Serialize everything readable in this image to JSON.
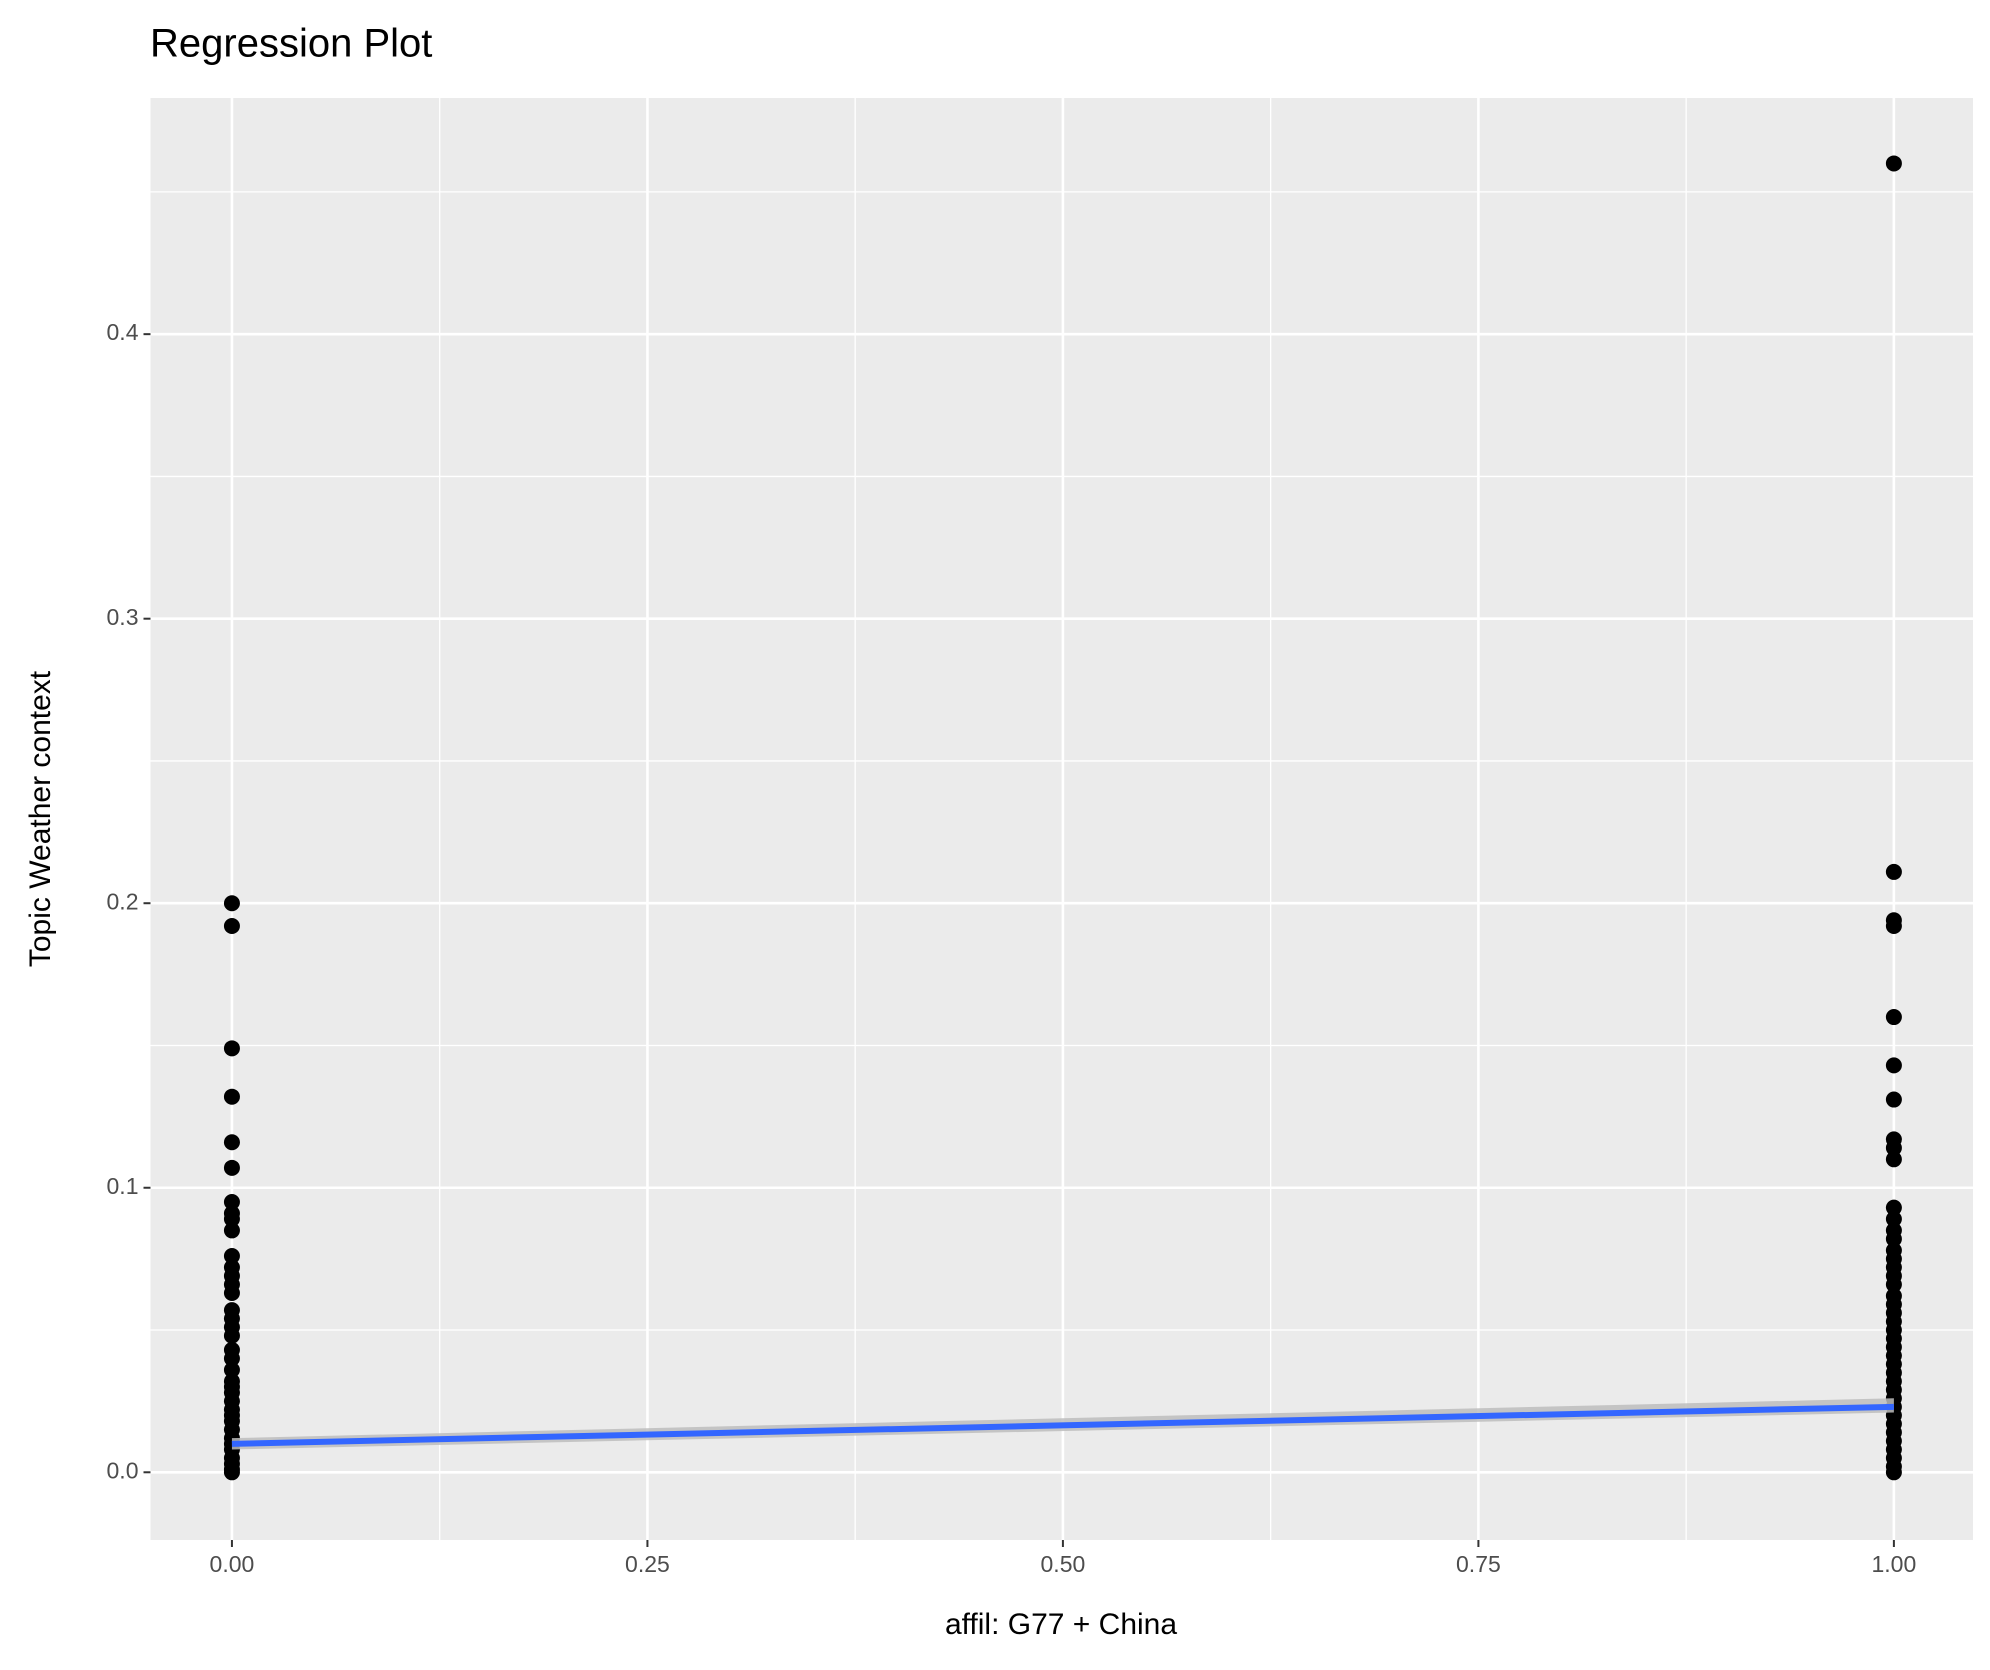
{
  "chart_data": {
    "type": "scatter",
    "title": "Regression Plot",
    "x_label": "affil: G77 + China",
    "y_label": "Topic Weather context",
    "xlim": [
      -0.049,
      1.0476
    ],
    "ylim": [
      -0.0238,
      0.483
    ],
    "xticks": [
      {
        "value": 0,
        "label": "0.00"
      },
      {
        "value": 0.25,
        "label": "0.25"
      },
      {
        "value": 0.5,
        "label": "0.50"
      },
      {
        "value": 0.75,
        "label": "0.75"
      },
      {
        "value": 1,
        "label": "1.00"
      }
    ],
    "yticks": [
      {
        "value": 0,
        "label": "0.0"
      },
      0.1,
      0.2,
      0.3,
      0.4
    ],
    "x_minor_grid": [
      0.125,
      0.375,
      0.625,
      0.875
    ],
    "y_minor_grid": [
      0.05,
      0.15,
      0.25,
      0.35,
      0.45
    ],
    "grid": true,
    "series": [
      {
        "type": "scatter",
        "color": "#000000",
        "x": [
          0,
          0,
          0,
          0,
          0,
          0,
          0,
          0,
          0,
          0,
          0,
          0,
          0,
          0,
          0,
          0,
          0,
          0,
          0,
          0,
          0,
          0,
          0,
          0,
          0,
          0,
          0,
          0,
          0,
          0,
          0,
          0,
          0,
          0,
          0,
          0,
          0,
          1,
          1,
          1,
          1,
          1,
          1,
          1,
          1,
          1,
          1,
          1,
          1,
          1,
          1,
          1,
          1,
          1,
          1,
          1,
          1,
          1,
          1,
          1,
          1,
          1,
          1,
          1,
          1,
          1,
          1,
          1,
          1,
          1,
          1,
          1,
          1,
          1,
          1,
          1,
          1,
          1
        ],
        "y": [
          0.2,
          0.192,
          0.149,
          0.132,
          0.116,
          0.107,
          0.095,
          0.091,
          0.089,
          0.085,
          0.076,
          0.072,
          0.069,
          0.066,
          0.063,
          0.057,
          0.054,
          0.051,
          0.048,
          0.043,
          0.04,
          0.036,
          0.032,
          0.03,
          0.028,
          0.025,
          0.022,
          0.02,
          0.018,
          0.015,
          0.012,
          0.01,
          0.008,
          0.005,
          0.003,
          0.001,
          0,
          0.46,
          0.211,
          0.194,
          0.192,
          0.16,
          0.143,
          0.131,
          0.117,
          0.114,
          0.11,
          0.093,
          0.089,
          0.085,
          0.082,
          0.078,
          0.075,
          0.072,
          0.069,
          0.066,
          0.062,
          0.059,
          0.056,
          0.053,
          0.05,
          0.047,
          0.044,
          0.041,
          0.038,
          0.035,
          0.032,
          0.029,
          0.026,
          0.023,
          0.02,
          0.017,
          0.014,
          0.011,
          0.008,
          0.005,
          0.002,
          0
        ]
      },
      {
        "type": "line",
        "color": "#3366FF",
        "band_color": "#bdbdbd",
        "x": [
          0,
          1
        ],
        "y": [
          0.01,
          0.023
        ],
        "lower": [
          0.008,
          0.021
        ],
        "upper": [
          0.012,
          0.026
        ]
      }
    ]
  }
}
